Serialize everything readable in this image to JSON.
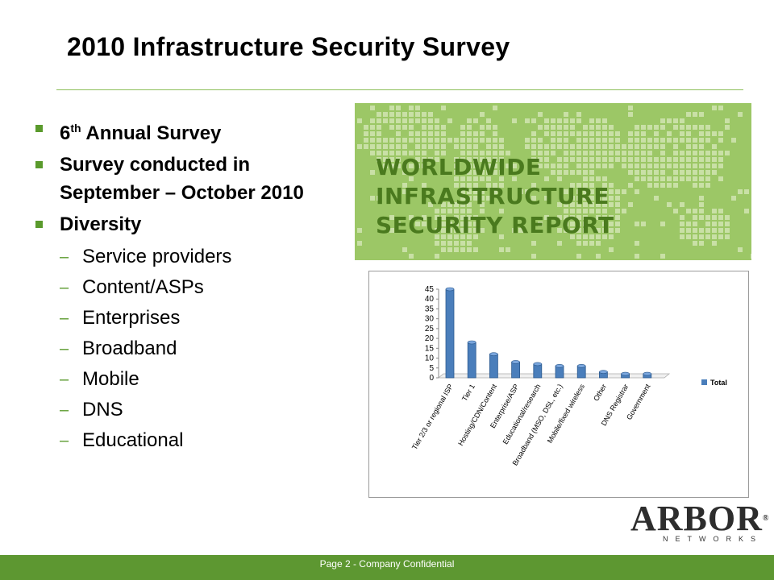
{
  "slide": {
    "title": "2010 Infrastructure Security Survey",
    "bullets": [
      {
        "text_main": "6",
        "text_sup": "th",
        "text_rest": " Annual Survey"
      },
      {
        "text": "Survey conducted in September – October 2010"
      },
      {
        "text": "Diversity"
      }
    ],
    "sub_bullets": [
      "Service providers",
      "Content/ASPs",
      "Enterprises",
      "Broadband",
      "Mobile",
      "DNS",
      "Educational"
    ],
    "banner": {
      "line1": "WORLDWIDE INFRASTRUCTURE",
      "line2": "SECURITY REPORT"
    },
    "logo": {
      "main": "ARBOR",
      "registered": "®",
      "sub": "NETWORKS"
    },
    "footer": "Page 2 - Company Confidential"
  },
  "colors": {
    "accent": "#5d9731",
    "bar": "#4a7ebb",
    "banner": "#9cc766"
  },
  "chart_data": {
    "type": "bar",
    "categories": [
      "Tier 2/3 or regional ISP",
      "Tier 1",
      "Hosting/CDN/Content",
      "Enterprise/ASP",
      "Educational/research",
      "Broadband (MSO, DSL, etc.)",
      "Mobile/fixed wireless",
      "Other",
      "DNS Registrar",
      "Government"
    ],
    "series": [
      {
        "name": "Total",
        "values": [
          45,
          18,
          12,
          8,
          7,
          6,
          6,
          3,
          2,
          2
        ]
      }
    ],
    "ylim": [
      0,
      45
    ],
    "yticks": [
      0,
      5,
      10,
      15,
      20,
      25,
      30,
      35,
      40,
      45
    ],
    "legend": "right",
    "grid": false
  }
}
